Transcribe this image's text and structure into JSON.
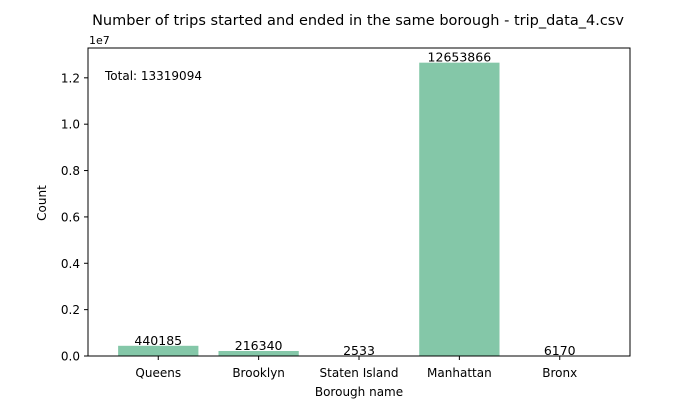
{
  "chart_data": {
    "type": "bar",
    "title": "Number of trips started and ended in the same borough - trip_data_4.csv",
    "xlabel": "Borough name",
    "ylabel": "Count",
    "y_offset_label": "1e7",
    "annotation": "Total: 13319094",
    "categories": [
      "Queens",
      "Brooklyn",
      "Staten Island",
      "Manhattan",
      "Bronx"
    ],
    "values": [
      440185,
      216340,
      2533,
      12653866,
      6170
    ],
    "value_labels": [
      "440185",
      "216340",
      "2533",
      "12653866",
      "6170"
    ],
    "ylim": [
      0,
      13286559
    ],
    "yticks": [
      0,
      2000000,
      4000000,
      6000000,
      8000000,
      10000000,
      12000000
    ],
    "ytick_labels": [
      "0.0",
      "0.2",
      "0.4",
      "0.6",
      "0.8",
      "1.0",
      "1.2"
    ],
    "bar_color": "#84c7a8",
    "grid": false,
    "legend": "none"
  }
}
